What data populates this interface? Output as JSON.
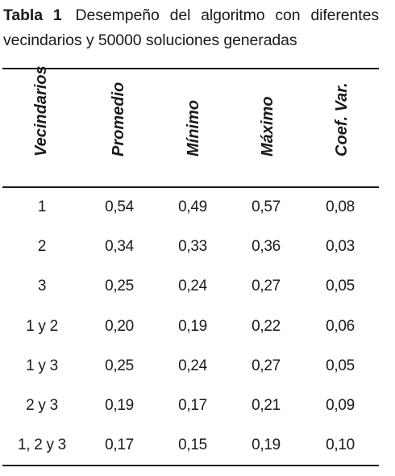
{
  "caption": {
    "label": "Tabla 1",
    "text": "Desempeño del algoritmo con diferentes vecindarios y 50000 soluciones generadas"
  },
  "table": {
    "columns": [
      "Vecindarios",
      "Promedio",
      "Mínimo",
      "Máximo",
      "Coef. Var."
    ],
    "rows": [
      [
        "1",
        "0,54",
        "0,49",
        "0,57",
        "0,08"
      ],
      [
        "2",
        "0,34",
        "0,33",
        "0,36",
        "0,03"
      ],
      [
        "3",
        "0,25",
        "0,24",
        "0,27",
        "0,05"
      ],
      [
        "1 y 2",
        "0,20",
        "0,19",
        "0,22",
        "0,06"
      ],
      [
        "1 y 3",
        "0,25",
        "0,24",
        "0,27",
        "0,05"
      ],
      [
        "2 y 3",
        "0,19",
        "0,17",
        "0,21",
        "0,09"
      ],
      [
        "1, 2 y 3",
        "0,17",
        "0,15",
        "0,19",
        "0,10"
      ]
    ]
  }
}
